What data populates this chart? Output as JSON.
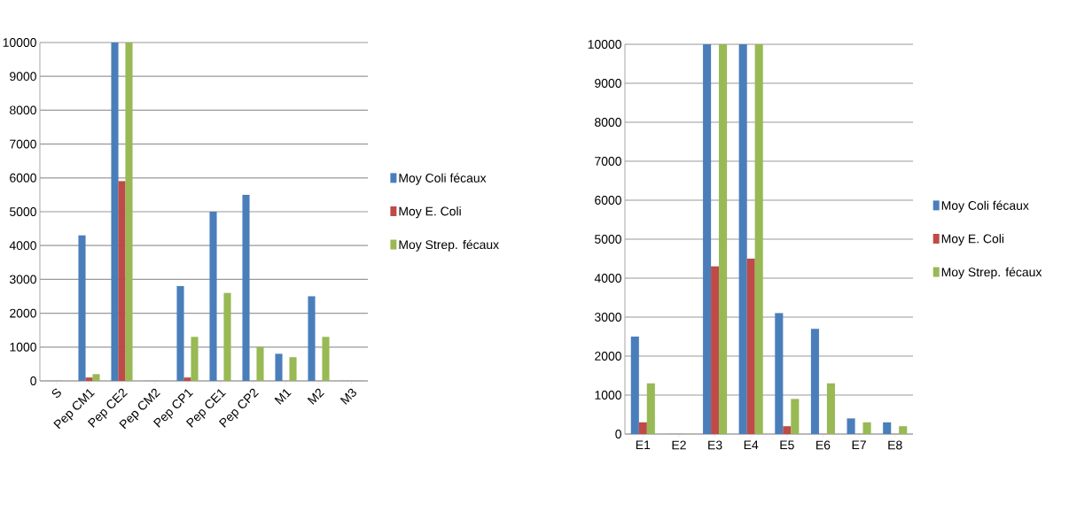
{
  "chart_data": [
    {
      "type": "bar",
      "categories": [
        "S",
        "Pep CM1",
        "Pep CE2",
        "Pep CM2",
        "Pep CP1",
        "Pep CE1",
        "Pep CP2",
        "M1",
        "M2",
        "M3"
      ],
      "series": [
        {
          "name": "Moy Coli fécaux",
          "color": "#4a7ebb",
          "values": [
            0,
            4300,
            10000,
            0,
            2800,
            5000,
            5500,
            800,
            2500,
            0
          ]
        },
        {
          "name": "Moy E. Coli",
          "color": "#be4b48",
          "values": [
            0,
            100,
            5900,
            0,
            100,
            0,
            0,
            0,
            0,
            0
          ]
        },
        {
          "name": "Moy Strep. fécaux",
          "color": "#98b954",
          "values": [
            0,
            200,
            10000,
            0,
            1300,
            2600,
            1000,
            700,
            1300,
            0
          ]
        }
      ],
      "ylim": [
        0,
        10000
      ],
      "yticks": [
        0,
        1000,
        2000,
        3000,
        4000,
        5000,
        6000,
        7000,
        8000,
        9000,
        10000
      ],
      "grid": "y",
      "legend": "right"
    },
    {
      "type": "bar",
      "categories": [
        "E1",
        "E2",
        "E3",
        "E4",
        "E5",
        "E6",
        "E7",
        "E8"
      ],
      "series": [
        {
          "name": "Moy Coli fécaux",
          "color": "#4a7ebb",
          "values": [
            2500,
            0,
            10000,
            10000,
            3100,
            2700,
            400,
            300
          ]
        },
        {
          "name": "Moy E. Coli",
          "color": "#be4b48",
          "values": [
            300,
            0,
            4300,
            4500,
            200,
            0,
            0,
            0
          ]
        },
        {
          "name": "Moy Strep. fécaux",
          "color": "#98b954",
          "values": [
            1300,
            0,
            10000,
            10000,
            900,
            1300,
            300,
            200
          ]
        }
      ],
      "ylim": [
        0,
        10000
      ],
      "yticks": [
        0,
        1000,
        2000,
        3000,
        4000,
        5000,
        6000,
        7000,
        8000,
        9000,
        10000
      ],
      "grid": "y",
      "legend": "right"
    }
  ]
}
